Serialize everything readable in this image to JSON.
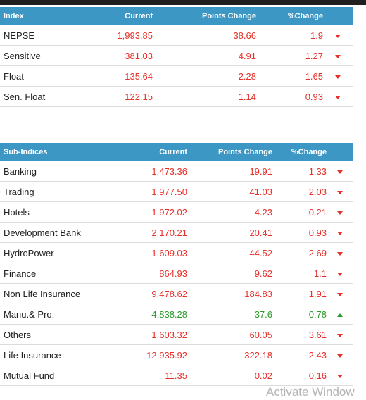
{
  "colors": {
    "header_bg": "#3c97c4",
    "negative": "#e8302a",
    "positive": "#2a9a2a"
  },
  "index_table": {
    "headers": {
      "name": "Index",
      "current": "Current",
      "points": "Points Change",
      "pct": "%Change"
    },
    "rows": [
      {
        "name": "NEPSE",
        "current": "1,993.85",
        "points": "38.66",
        "pct": "1.9",
        "trend": "down"
      },
      {
        "name": "Sensitive",
        "current": "381.03",
        "points": "4.91",
        "pct": "1.27",
        "trend": "down"
      },
      {
        "name": "Float",
        "current": "135.64",
        "points": "2.28",
        "pct": "1.65",
        "trend": "down"
      },
      {
        "name": "Sen. Float",
        "current": "122.15",
        "points": "1.14",
        "pct": "0.93",
        "trend": "down"
      }
    ]
  },
  "sub_indices_table": {
    "headers": {
      "name": "Sub-Indices",
      "current": "Current",
      "points": "Points Change",
      "pct": "%Change"
    },
    "rows": [
      {
        "name": "Banking",
        "current": "1,473.36",
        "points": "19.91",
        "pct": "1.33",
        "trend": "down"
      },
      {
        "name": "Trading",
        "current": "1,977.50",
        "points": "41.03",
        "pct": "2.03",
        "trend": "down"
      },
      {
        "name": "Hotels",
        "current": "1,972.02",
        "points": "4.23",
        "pct": "0.21",
        "trend": "down"
      },
      {
        "name": "Development Bank",
        "current": "2,170.21",
        "points": "20.41",
        "pct": "0.93",
        "trend": "down"
      },
      {
        "name": "HydroPower",
        "current": "1,609.03",
        "points": "44.52",
        "pct": "2.69",
        "trend": "down"
      },
      {
        "name": "Finance",
        "current": "864.93",
        "points": "9.62",
        "pct": "1.1",
        "trend": "down"
      },
      {
        "name": "Non Life Insurance",
        "current": "9,478.62",
        "points": "184.83",
        "pct": "1.91",
        "trend": "down"
      },
      {
        "name": "Manu.& Pro.",
        "current": "4,838.28",
        "points": "37.6",
        "pct": "0.78",
        "trend": "up"
      },
      {
        "name": "Others",
        "current": "1,603.32",
        "points": "60.05",
        "pct": "3.61",
        "trend": "down"
      },
      {
        "name": "Life Insurance",
        "current": "12,935.92",
        "points": "322.18",
        "pct": "2.43",
        "trend": "down"
      },
      {
        "name": "Mutual Fund",
        "current": "11.35",
        "points": "0.02",
        "pct": "0.16",
        "trend": "down"
      }
    ]
  },
  "watermark": "Activate Window"
}
